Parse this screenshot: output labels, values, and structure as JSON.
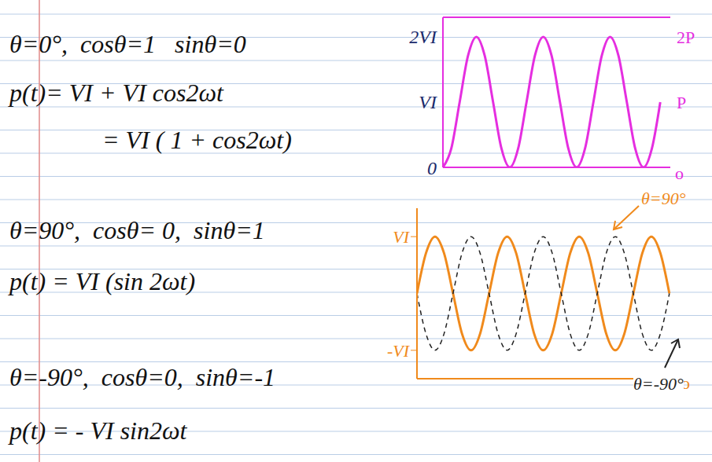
{
  "notes": [
    "θ=0°,  cosθ=1   sinθ=0",
    "p(t)= VI + VI cos2ωt",
    "= VI ( 1 + cos2ωt)",
    "θ=90°,  cosθ= 0,  sinθ=1",
    "p(t) = VI (sin 2ωt)",
    "θ=-90°,  cosθ=0,  sinθ=-1",
    "p(t) = - VI sin2ωt"
  ],
  "chart_data": [
    {
      "type": "line",
      "x": [
        0,
        0.125,
        0.25,
        0.375,
        0.5,
        0.625,
        0.75,
        0.875,
        1,
        1.125,
        1.25,
        1.375,
        1.5,
        1.625,
        1.75,
        1.875,
        2,
        2.125,
        2.25,
        2.375,
        2.5,
        2.625,
        2.75,
        2.875,
        3,
        3.125,
        3.25
      ],
      "values": [
        0,
        0.29,
        1,
        1.71,
        2,
        1.71,
        1,
        0.29,
        0,
        0.29,
        1,
        1.71,
        2,
        1.71,
        1,
        0.29,
        0,
        0.29,
        1,
        1.71,
        2,
        1.71,
        1,
        0.29,
        0,
        0.29,
        1
      ],
      "color": "#e52ee0",
      "xlim": [
        0,
        3.4
      ],
      "x_label": "o",
      "ylim": [
        0,
        2.3
      ],
      "yticks": [
        {
          "value": 0,
          "label": "0"
        },
        {
          "value": 1,
          "label": "VI"
        },
        {
          "value": 2,
          "label": "2VI"
        }
      ],
      "y2lim": [
        0,
        2.3
      ],
      "y2ticks": [
        {
          "value": 1,
          "label": "P"
        },
        {
          "value": 2,
          "label": "2P"
        }
      ],
      "grid": true,
      "tick_labels": "y"
    },
    {
      "type": "line",
      "x": [
        0,
        0.125,
        0.25,
        0.375,
        0.5,
        0.625,
        0.75,
        0.875,
        1,
        1.125,
        1.25,
        1.375,
        1.5,
        1.625,
        1.75,
        1.875,
        2,
        2.125,
        2.25,
        2.375,
        2.5,
        2.625,
        2.75,
        2.875,
        3,
        3.125,
        3.25,
        3.375,
        3.5
      ],
      "series": [
        {
          "name": "θ=90°",
          "color": "#f08a1c",
          "line_style": "solid",
          "values": [
            0,
            0.71,
            1,
            0.71,
            0,
            -0.71,
            -1,
            -0.71,
            0,
            0.71,
            1,
            0.71,
            0,
            -0.71,
            -1,
            -0.71,
            0,
            0.71,
            1,
            0.71,
            0,
            -0.71,
            -1,
            -0.71,
            0,
            0.71,
            1,
            0.71,
            0
          ]
        },
        {
          "name": "θ=-90°",
          "color": "#222222",
          "line_style": "dashed",
          "values": [
            0,
            -0.71,
            -1,
            -0.71,
            0,
            0.71,
            1,
            0.71,
            0,
            -0.71,
            -1,
            -0.71,
            0,
            0.71,
            1,
            0.71,
            0,
            -0.71,
            -1,
            -0.71,
            0,
            0.71,
            1,
            0.71,
            0,
            -0.71,
            -1,
            -0.71,
            0
          ]
        }
      ],
      "color": "#f08a1c",
      "xlim": [
        0,
        3.6
      ],
      "x_label": "o",
      "ylim": [
        -1.5,
        1.5
      ],
      "yticks": [
        {
          "value": -1,
          "label": "-VI"
        },
        {
          "value": 1,
          "label": "VI"
        }
      ],
      "grid": false,
      "tick_labels": "y"
    }
  ]
}
